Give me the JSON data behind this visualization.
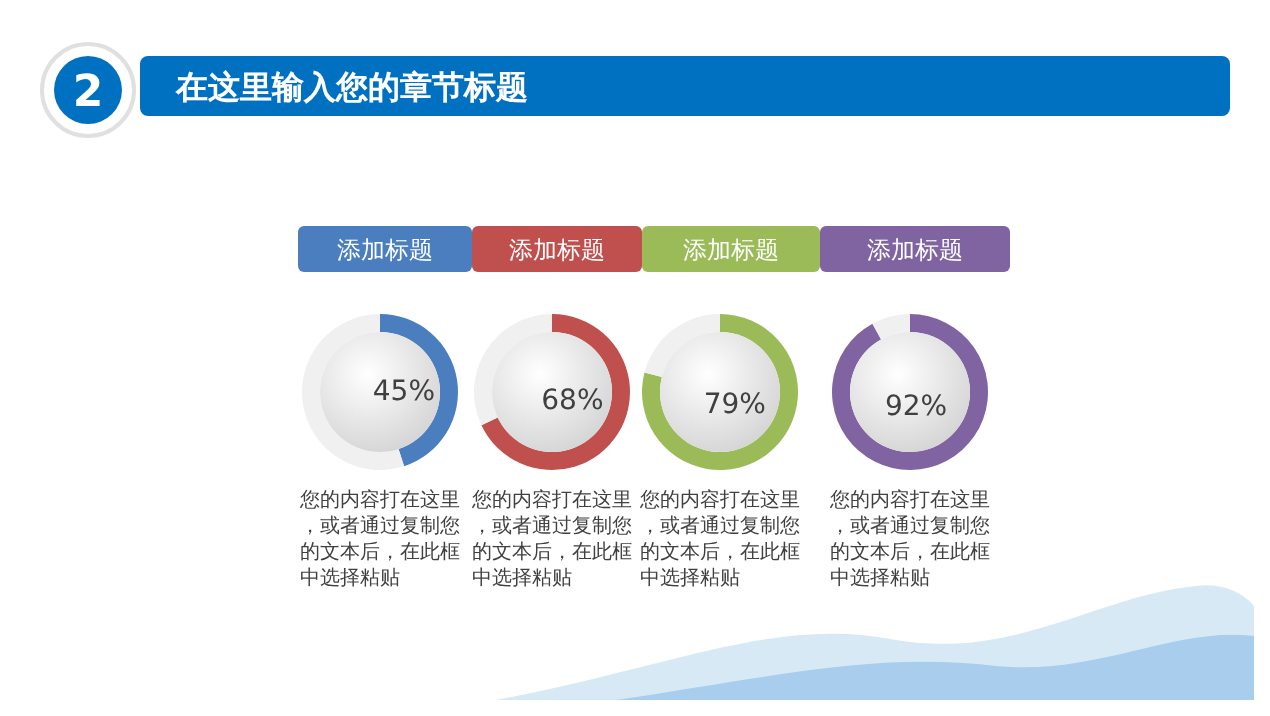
{
  "chart_data": [
    {
      "type": "other",
      "title": "在这里输入您的章节标题",
      "annotations": [
        "2"
      ]
    },
    {
      "type": "donut",
      "title": "添加标题",
      "categories": [
        null,
        null
      ],
      "values": [
        45,
        55
      ],
      "colors": [
        "#4a7ebf",
        "#f0f0f0"
      ],
      "value_labels": [
        "45%",
        null
      ],
      "annotations": [
        "您的内容打在这里，或者通过复制您的文本后，在此框中选择粘贴"
      ]
    },
    {
      "type": "donut",
      "title": "添加标题",
      "categories": [
        null,
        null
      ],
      "values": [
        68,
        32
      ],
      "colors": [
        "#c0504d",
        "#f0f0f0"
      ],
      "value_labels": [
        "68%",
        null
      ],
      "annotations": [
        "您的内容打在这里，或者通过复制您的文本后，在此框中选择粘贴"
      ]
    },
    {
      "type": "donut",
      "title": "添加标题",
      "categories": [
        null,
        null
      ],
      "values": [
        79,
        21
      ],
      "colors": [
        "#9bbb59",
        "#f0f0f0"
      ],
      "value_labels": [
        "79%",
        null
      ],
      "annotations": [
        "您的内容打在这里，或者通过复制您的文本后，在此框中选择粘贴"
      ]
    },
    {
      "type": "donut",
      "title": "添加标题",
      "categories": [
        null,
        null
      ],
      "values": [
        92,
        8
      ],
      "colors": [
        "#8064a2",
        "#f0f0f0"
      ],
      "value_labels": [
        "92%",
        null
      ],
      "annotations": [
        "您的内容打在这里，或者通过复制您的文本后，在此框中选择粘贴"
      ]
    }
  ]
}
